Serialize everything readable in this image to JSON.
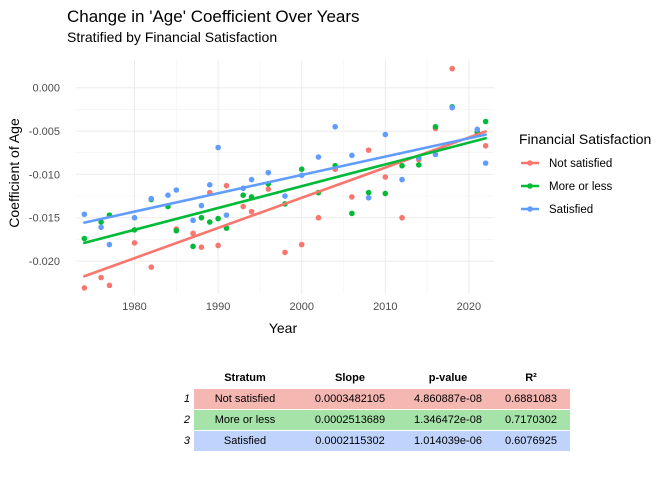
{
  "chart_data": {
    "type": "scatter",
    "title": "Change in 'Age' Coefficient Over Years",
    "subtitle": "Stratified by Financial Satisfaction",
    "xlabel": "Year",
    "ylabel": "Coefficient of Age",
    "xlim": [
      1973,
      2023
    ],
    "ylim": [
      -0.0238,
      0.0032
    ],
    "x_ticks": [
      1980,
      1990,
      2000,
      2010,
      2020
    ],
    "y_ticks": [
      0,
      -0.005,
      -0.01,
      -0.015,
      -0.02
    ],
    "x_tick_labels": [
      "1980",
      "1990",
      "2000",
      "2010",
      "2020"
    ],
    "y_tick_labels": [
      "0.000",
      "-0.005",
      "-0.010",
      "-0.015",
      "-0.020"
    ],
    "grid": true,
    "legend_position": "right",
    "legend_title": "Financial Satisfaction",
    "series": [
      {
        "name": "Not satisfied",
        "color": "#F8766D",
        "points": [
          [
            1974,
            -0.0231
          ],
          [
            1976,
            -0.0219
          ],
          [
            1977,
            -0.0228
          ],
          [
            1980,
            -0.0179
          ],
          [
            1982,
            -0.0207
          ],
          [
            1985,
            -0.0163
          ],
          [
            1987,
            -0.0168
          ],
          [
            1988,
            -0.0184
          ],
          [
            1989,
            -0.0121
          ],
          [
            1990,
            -0.0182
          ],
          [
            1991,
            -0.0113
          ],
          [
            1993,
            -0.0137
          ],
          [
            1994,
            -0.0143
          ],
          [
            1996,
            -0.0117
          ],
          [
            1998,
            -0.019
          ],
          [
            2000,
            -0.0181
          ],
          [
            2002,
            -0.015
          ],
          [
            2004,
            -0.0094
          ],
          [
            2006,
            -0.0126
          ],
          [
            2008,
            -0.0072
          ],
          [
            2010,
            -0.0103
          ],
          [
            2012,
            -0.015
          ],
          [
            2014,
            -0.0083
          ],
          [
            2016,
            -0.0047
          ],
          [
            2018,
            0.0022
          ],
          [
            2021,
            -0.0052
          ],
          [
            2022,
            -0.0067
          ]
        ],
        "trend": [
          [
            1974,
            -0.02175
          ],
          [
            2022,
            -0.00504
          ]
        ]
      },
      {
        "name": "More or less",
        "color": "#00BA38",
        "points": [
          [
            1974,
            -0.0174
          ],
          [
            1976,
            -0.0155
          ],
          [
            1977,
            -0.0147
          ],
          [
            1980,
            -0.0164
          ],
          [
            1982,
            -0.0129
          ],
          [
            1984,
            -0.0137
          ],
          [
            1985,
            -0.0165
          ],
          [
            1987,
            -0.0183
          ],
          [
            1988,
            -0.015
          ],
          [
            1989,
            -0.0155
          ],
          [
            1990,
            -0.0151
          ],
          [
            1991,
            -0.0162
          ],
          [
            1993,
            -0.0124
          ],
          [
            1994,
            -0.0126
          ],
          [
            1996,
            -0.0111
          ],
          [
            1998,
            -0.0134
          ],
          [
            2000,
            -0.0094
          ],
          [
            2002,
            -0.0121
          ],
          [
            2004,
            -0.009
          ],
          [
            2006,
            -0.0145
          ],
          [
            2008,
            -0.0121
          ],
          [
            2010,
            -0.0122
          ],
          [
            2012,
            -0.009
          ],
          [
            2014,
            -0.0089
          ],
          [
            2016,
            -0.0045
          ],
          [
            2018,
            -0.0022
          ],
          [
            2021,
            -0.0051
          ],
          [
            2022,
            -0.0039
          ]
        ],
        "trend": [
          [
            1974,
            -0.0179
          ],
          [
            2022,
            -0.00583
          ]
        ]
      },
      {
        "name": "Satisfied",
        "color": "#619CFF",
        "points": [
          [
            1974,
            -0.0146
          ],
          [
            1976,
            -0.0161
          ],
          [
            1977,
            -0.0181
          ],
          [
            1980,
            -0.015
          ],
          [
            1982,
            -0.0128
          ],
          [
            1984,
            -0.0124
          ],
          [
            1985,
            -0.0118
          ],
          [
            1987,
            -0.0153
          ],
          [
            1988,
            -0.0136
          ],
          [
            1989,
            -0.0112
          ],
          [
            1990,
            -0.0069
          ],
          [
            1991,
            -0.0147
          ],
          [
            1993,
            -0.0116
          ],
          [
            1994,
            -0.0106
          ],
          [
            1996,
            -0.0098
          ],
          [
            1998,
            -0.0125
          ],
          [
            2000,
            -0.0101
          ],
          [
            2002,
            -0.008
          ],
          [
            2004,
            -0.0045
          ],
          [
            2006,
            -0.0078
          ],
          [
            2008,
            -0.0127
          ],
          [
            2010,
            -0.0054
          ],
          [
            2012,
            -0.0106
          ],
          [
            2014,
            -0.0081
          ],
          [
            2016,
            -0.0077
          ],
          [
            2018,
            -0.0023
          ],
          [
            2021,
            -0.0048
          ],
          [
            2022,
            -0.0087
          ]
        ],
        "trend": [
          [
            1974,
            -0.01556
          ],
          [
            2022,
            -0.00541
          ]
        ]
      }
    ]
  },
  "stats_table": {
    "headers": [
      "Stratum",
      "Slope",
      "p-value",
      "R²"
    ],
    "rows": [
      {
        "index": "1",
        "stratum": "Not satisfied",
        "slope": "0.0003482105",
        "p_value": "4.860887e-08",
        "r2": "0.6881083",
        "color": "#F4B7B2"
      },
      {
        "index": "2",
        "stratum": "More or less",
        "slope": "0.0002513689",
        "p_value": "1.346472e-08",
        "r2": "0.7170302",
        "color": "#A6E3A9"
      },
      {
        "index": "3",
        "stratum": "Satisfied",
        "slope": "0.0002115302",
        "p_value": "1.014039e-06",
        "r2": "0.6076925",
        "color": "#BFD3FC"
      }
    ]
  }
}
